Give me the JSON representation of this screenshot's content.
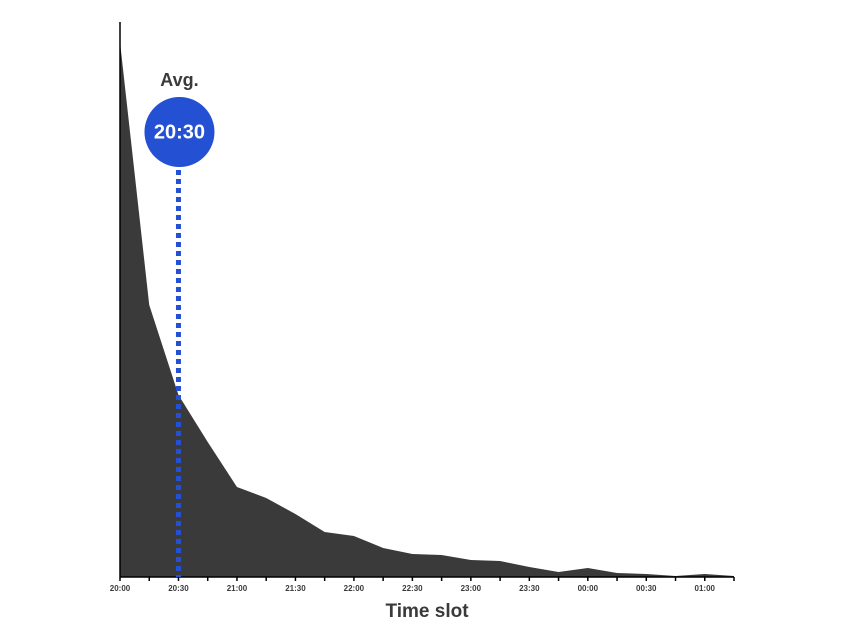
{
  "chart_data": {
    "type": "area",
    "x_label": "Time slot",
    "categories": [
      "20:00",
      null,
      "20:30",
      null,
      "21:00",
      null,
      "21:30",
      null,
      "22:00",
      null,
      "22:30",
      null,
      "23:00",
      null,
      "23:30",
      null,
      "00:00",
      null,
      "00:30",
      null,
      "01:00",
      null
    ],
    "values": [
      535,
      272,
      182,
      135,
      90,
      79,
      63,
      45,
      41,
      29,
      23,
      22,
      17,
      16,
      10,
      5,
      9,
      4,
      3,
      1,
      3,
      1
    ],
    "color": "#3a3a3a",
    "ylim": [
      0,
      540
    ],
    "annotation": {
      "label": "Avg.",
      "x": "20:30",
      "color": "#2450d3"
    }
  }
}
